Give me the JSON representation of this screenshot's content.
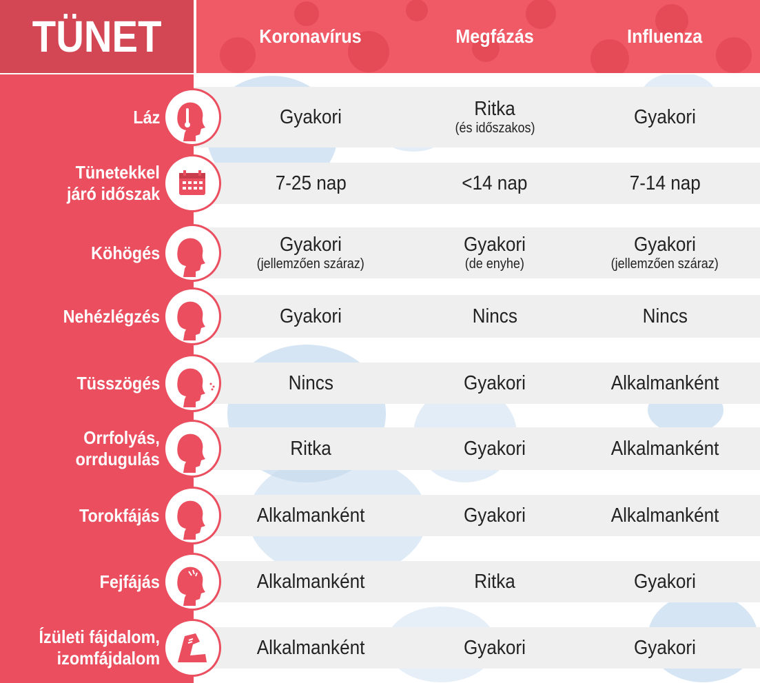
{
  "header": {
    "title": "TÜNET",
    "columns": [
      "Koronavírus",
      "Megfázás",
      "Influenza"
    ]
  },
  "colors": {
    "sidebar": "#ea4e5f",
    "title_box": "#d34755",
    "header": "#f05a66",
    "row_band": "#efefef"
  },
  "rows": [
    {
      "label_lines": [
        "Láz"
      ],
      "icon": "fever-thermometer-icon",
      "cells": [
        {
          "main": "Gyakori",
          "sub": ""
        },
        {
          "main": "Ritka",
          "sub": "(és időszakos)"
        },
        {
          "main": "Gyakori",
          "sub": ""
        }
      ]
    },
    {
      "label_lines": [
        "Tünetekkel",
        "járó időszak"
      ],
      "icon": "calendar-icon",
      "cells": [
        {
          "main": "7-25 nap",
          "sub": ""
        },
        {
          "main": "<14 nap",
          "sub": ""
        },
        {
          "main": "7-14 nap",
          "sub": ""
        }
      ]
    },
    {
      "label_lines": [
        "Köhögés"
      ],
      "icon": "cough-icon",
      "cells": [
        {
          "main": "Gyakori",
          "sub": "(jellemzően száraz)"
        },
        {
          "main": "Gyakori",
          "sub": "(de enyhe)"
        },
        {
          "main": "Gyakori",
          "sub": "(jellemzően száraz)"
        }
      ]
    },
    {
      "label_lines": [
        "Nehézlégzés"
      ],
      "icon": "breathing-difficulty-icon",
      "cells": [
        {
          "main": "Gyakori",
          "sub": ""
        },
        {
          "main": "Nincs",
          "sub": ""
        },
        {
          "main": "Nincs",
          "sub": ""
        }
      ]
    },
    {
      "label_lines": [
        "Tüsszögés"
      ],
      "icon": "sneeze-icon",
      "cells": [
        {
          "main": "Nincs",
          "sub": ""
        },
        {
          "main": "Gyakori",
          "sub": ""
        },
        {
          "main": "Alkalmanként",
          "sub": ""
        }
      ]
    },
    {
      "label_lines": [
        "Orrfolyás,",
        "orrdugulás"
      ],
      "icon": "runny-nose-icon",
      "cells": [
        {
          "main": "Ritka",
          "sub": ""
        },
        {
          "main": "Gyakori",
          "sub": ""
        },
        {
          "main": "Alkalmanként",
          "sub": ""
        }
      ]
    },
    {
      "label_lines": [
        "Torokfájás"
      ],
      "icon": "sore-throat-icon",
      "cells": [
        {
          "main": "Alkalmanként",
          "sub": ""
        },
        {
          "main": "Gyakori",
          "sub": ""
        },
        {
          "main": "Alkalmanként",
          "sub": ""
        }
      ]
    },
    {
      "label_lines": [
        "Fejfájás"
      ],
      "icon": "headache-icon",
      "cells": [
        {
          "main": "Alkalmanként",
          "sub": ""
        },
        {
          "main": "Ritka",
          "sub": ""
        },
        {
          "main": "Gyakori",
          "sub": ""
        }
      ]
    },
    {
      "label_lines": [
        "Ízületi fájdalom,",
        "izomfájdalom"
      ],
      "icon": "joint-pain-icon",
      "cells": [
        {
          "main": "Alkalmanként",
          "sub": ""
        },
        {
          "main": "Gyakori",
          "sub": ""
        },
        {
          "main": "Gyakori",
          "sub": ""
        }
      ]
    }
  ]
}
